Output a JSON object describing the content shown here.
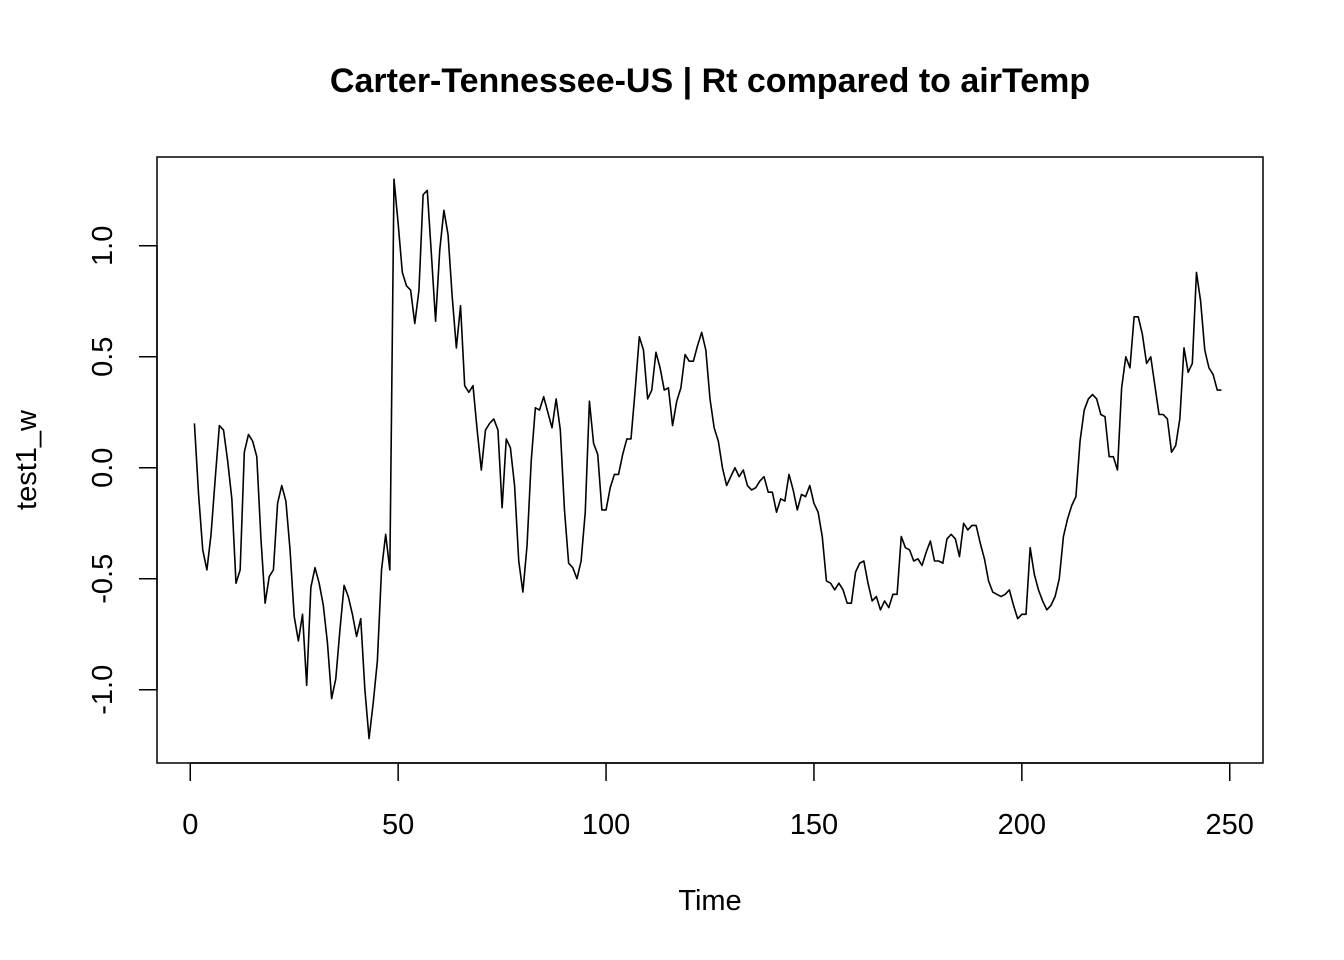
{
  "chart_data": {
    "type": "line",
    "title": "Carter-Tennessee-US | Rt compared to airTemp",
    "xlabel": "Time",
    "ylabel": "test1_w",
    "xlim": [
      -8,
      258
    ],
    "ylim": [
      -1.33,
      1.4
    ],
    "xticks": [
      0,
      50,
      100,
      150,
      200,
      250
    ],
    "xtick_labels": [
      "0",
      "50",
      "100",
      "150",
      "200",
      "250"
    ],
    "yticks": [
      -1.0,
      -0.5,
      0.0,
      0.5,
      1.0
    ],
    "ytick_labels": [
      "-1.0",
      "-0.5",
      "0.0",
      "0.5",
      "1.0"
    ],
    "grid": false,
    "legend": "none",
    "series": [
      {
        "color": "#000000",
        "x": [
          1,
          2,
          3,
          4,
          5,
          6,
          7,
          8,
          9,
          10,
          11,
          12,
          13,
          14,
          15,
          16,
          17,
          18,
          19,
          20,
          21,
          22,
          23,
          24,
          25,
          26,
          27,
          28,
          29,
          30,
          31,
          32,
          33,
          34,
          35,
          36,
          37,
          38,
          39,
          40,
          41,
          42,
          43,
          44,
          45,
          46,
          47,
          48,
          49,
          50,
          51,
          52,
          53,
          54,
          55,
          56,
          57,
          58,
          59,
          60,
          61,
          62,
          63,
          64,
          65,
          66,
          67,
          68,
          69,
          70,
          71,
          72,
          73,
          74,
          75,
          76,
          77,
          78,
          79,
          80,
          81,
          82,
          83,
          84,
          85,
          86,
          87,
          88,
          89,
          90,
          91,
          92,
          93,
          94,
          95,
          96,
          97,
          98,
          99,
          100,
          101,
          102,
          103,
          104,
          105,
          106,
          107,
          108,
          109,
          110,
          111,
          112,
          113,
          114,
          115,
          116,
          117,
          118,
          119,
          120,
          121,
          122,
          123,
          124,
          125,
          126,
          127,
          128,
          129,
          130,
          131,
          132,
          133,
          134,
          135,
          136,
          137,
          138,
          139,
          140,
          141,
          142,
          143,
          144,
          145,
          146,
          147,
          148,
          149,
          150,
          151,
          152,
          153,
          154,
          155,
          156,
          157,
          158,
          159,
          160,
          161,
          162,
          163,
          164,
          165,
          166,
          167,
          168,
          169,
          170,
          171,
          172,
          173,
          174,
          175,
          176,
          177,
          178,
          179,
          180,
          181,
          182,
          183,
          184,
          185,
          186,
          187,
          188,
          189,
          190,
          191,
          192,
          193,
          194,
          195,
          196,
          197,
          198,
          199,
          200,
          201,
          202,
          203,
          204,
          205,
          206,
          207,
          208,
          209,
          210,
          211,
          212,
          213,
          214,
          215,
          216,
          217,
          218,
          219,
          220,
          221,
          222,
          223,
          224,
          225,
          226,
          227,
          228,
          229,
          230,
          231,
          232,
          233,
          234,
          235,
          236,
          237,
          238,
          239,
          240,
          241,
          242,
          243,
          244,
          245,
          246,
          247,
          248
        ],
        "y": [
          0.2,
          -0.12,
          -0.37,
          -0.46,
          -0.3,
          -0.05,
          0.19,
          0.17,
          0.03,
          -0.14,
          -0.52,
          -0.46,
          0.07,
          0.15,
          0.12,
          0.05,
          -0.32,
          -0.61,
          -0.49,
          -0.46,
          -0.16,
          -0.08,
          -0.15,
          -0.37,
          -0.67,
          -0.78,
          -0.66,
          -0.98,
          -0.54,
          -0.45,
          -0.52,
          -0.62,
          -0.79,
          -1.04,
          -0.95,
          -0.73,
          -0.53,
          -0.58,
          -0.66,
          -0.76,
          -0.68,
          -1.0,
          -1.22,
          -1.06,
          -0.87,
          -0.46,
          -0.3,
          -0.46,
          1.3,
          1.1,
          0.88,
          0.82,
          0.8,
          0.65,
          0.8,
          1.23,
          1.25,
          0.96,
          0.66,
          0.98,
          1.16,
          1.05,
          0.77,
          0.54,
          0.73,
          0.37,
          0.34,
          0.37,
          0.17,
          -0.01,
          0.17,
          0.2,
          0.22,
          0.17,
          -0.18,
          0.13,
          0.09,
          -0.08,
          -0.42,
          -0.56,
          -0.35,
          0.03,
          0.27,
          0.26,
          0.32,
          0.25,
          0.18,
          0.31,
          0.17,
          -0.19,
          -0.43,
          -0.45,
          -0.5,
          -0.42,
          -0.2,
          0.3,
          0.11,
          0.06,
          -0.19,
          -0.19,
          -0.09,
          -0.03,
          -0.03,
          0.06,
          0.13,
          0.13,
          0.35,
          0.59,
          0.53,
          0.31,
          0.35,
          0.52,
          0.45,
          0.35,
          0.36,
          0.19,
          0.3,
          0.36,
          0.51,
          0.48,
          0.48,
          0.55,
          0.61,
          0.53,
          0.31,
          0.18,
          0.12,
          0.0,
          -0.08,
          -0.04,
          0.0,
          -0.04,
          -0.01,
          -0.08,
          -0.1,
          -0.09,
          -0.06,
          -0.04,
          -0.11,
          -0.11,
          -0.2,
          -0.14,
          -0.15,
          -0.03,
          -0.1,
          -0.19,
          -0.12,
          -0.13,
          -0.08,
          -0.16,
          -0.2,
          -0.31,
          -0.51,
          -0.52,
          -0.55,
          -0.52,
          -0.55,
          -0.61,
          -0.61,
          -0.47,
          -0.43,
          -0.42,
          -0.52,
          -0.6,
          -0.58,
          -0.64,
          -0.6,
          -0.63,
          -0.57,
          -0.57,
          -0.31,
          -0.36,
          -0.37,
          -0.42,
          -0.41,
          -0.44,
          -0.38,
          -0.33,
          -0.42,
          -0.42,
          -0.43,
          -0.32,
          -0.3,
          -0.32,
          -0.4,
          -0.25,
          -0.28,
          -0.26,
          -0.26,
          -0.34,
          -0.41,
          -0.51,
          -0.56,
          -0.57,
          -0.58,
          -0.57,
          -0.55,
          -0.62,
          -0.68,
          -0.66,
          -0.66,
          -0.36,
          -0.48,
          -0.55,
          -0.6,
          -0.64,
          -0.62,
          -0.58,
          -0.5,
          -0.31,
          -0.23,
          -0.17,
          -0.13,
          0.12,
          0.26,
          0.31,
          0.33,
          0.31,
          0.24,
          0.23,
          0.05,
          0.05,
          -0.01,
          0.36,
          0.5,
          0.45,
          0.68,
          0.68,
          0.6,
          0.47,
          0.5,
          0.37,
          0.24,
          0.24,
          0.22,
          0.07,
          0.1,
          0.22,
          0.54,
          0.43,
          0.47,
          0.88,
          0.75,
          0.53,
          0.45,
          0.42,
          0.35,
          0.35
        ]
      }
    ]
  }
}
